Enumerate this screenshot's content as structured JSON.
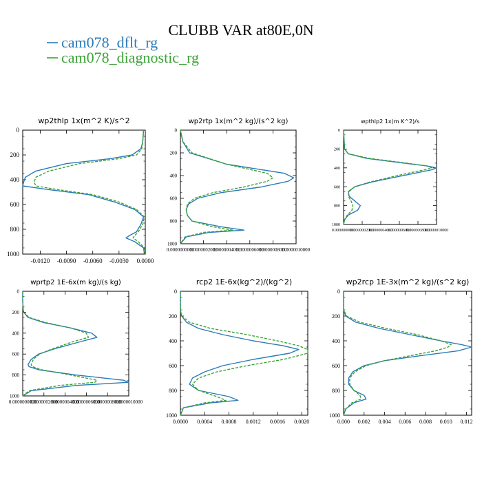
{
  "figure": {
    "title": "CLUBB VAR at80E,0N",
    "legend": [
      {
        "label": "cam078_dflt_rg",
        "color": "#2a7ab8",
        "dash": "solid"
      },
      {
        "label": "cam078_diagnostic_rg",
        "color": "#3aa335",
        "dash": "dashed"
      }
    ]
  },
  "chart_data": [
    {
      "type": "line",
      "title": "wp2thlp  1x(m^2 K)/s^2",
      "xlim": [
        -0.014,
        0.0
      ],
      "xticks": [
        "-0.0120",
        "-0.0090",
        "-0.0060",
        "-0.0030",
        "0.0000"
      ],
      "xtick_values": [
        -0.012,
        -0.009,
        -0.006,
        -0.003,
        0.0
      ],
      "ylim": [
        1000,
        0
      ],
      "yticks": [
        0,
        200,
        400,
        600,
        800,
        1000
      ],
      "y": [
        0,
        100,
        150,
        200,
        230,
        270,
        330,
        380,
        420,
        450,
        480,
        520,
        580,
        640,
        700,
        760,
        820,
        850,
        870,
        900,
        950,
        1000
      ],
      "series": [
        {
          "name": "cam078_dflt_rg",
          "x": [
            -0.0002,
            -0.0003,
            -0.0005,
            -0.0015,
            -0.004,
            -0.009,
            -0.0125,
            -0.0137,
            -0.0139,
            -0.014,
            -0.011,
            -0.0065,
            -0.0035,
            -0.0012,
            -0.0002,
            -0.0005,
            -0.001,
            -0.0018,
            -0.0022,
            -0.0012,
            -0.0002,
            -0.0001
          ]
        },
        {
          "name": "cam078_diagnostic_rg",
          "x": [
            -0.0002,
            -0.0003,
            -0.0004,
            -0.001,
            -0.003,
            -0.0075,
            -0.011,
            -0.0125,
            -0.0127,
            -0.0125,
            -0.01,
            -0.006,
            -0.003,
            -0.001,
            -0.0001,
            -0.0003,
            -0.0008,
            -0.0012,
            -0.0014,
            -0.0008,
            -0.0001,
            -0.0001
          ]
        }
      ]
    },
    {
      "type": "line",
      "title": "wp2rtp  1x(m^2 kg)/(s^2 kg)",
      "xlim": [
        0.0,
        1e-06
      ],
      "xticks": [
        "0.0000000000",
        "0.0000002000",
        "0.0000004000",
        "0.0000006000",
        "0.0000008000",
        "0.0000010000"
      ],
      "xtick_values": [
        0.0,
        2e-07,
        4e-07,
        6e-07,
        8e-07,
        1e-06
      ],
      "ylim": [
        1000,
        0
      ],
      "yticks": [
        0,
        200,
        400,
        600,
        800,
        1000
      ],
      "y": [
        0,
        100,
        200,
        300,
        380,
        420,
        450,
        500,
        550,
        600,
        650,
        700,
        750,
        800,
        850,
        880,
        900,
        940,
        1000
      ],
      "series": [
        {
          "name": "cam078_dflt_rg",
          "x": [
            0.0,
            2e-08,
            8e-08,
            4e-07,
            9e-07,
            9.8e-07,
            9.3e-07,
            7e-07,
            3.5e-07,
            1.5e-07,
            7e-08,
            5e-08,
            6e-08,
            1e-07,
            3.5e-07,
            5.5e-07,
            2.5e-07,
            5e-08,
            0.0
          ]
        },
        {
          "name": "cam078_diagnostic_rg",
          "x": [
            0.0,
            2e-08,
            1e-07,
            4e-07,
            7.5e-07,
            8e-07,
            7.5e-07,
            5.5e-07,
            2.8e-07,
            1.2e-07,
            6e-08,
            5e-08,
            6e-08,
            1e-07,
            2.8e-07,
            4.5e-07,
            2e-07,
            4e-08,
            0.0
          ]
        }
      ]
    },
    {
      "type": "line",
      "title": "wpthlp2  1x(m K^2)/s",
      "xlim": [
        0.0,
        1e-06
      ],
      "xticks": [
        "0.0000000000",
        "0.0000002000",
        "0.0000004000",
        "0.0000006000",
        "0.0000008000",
        "0.0000010000"
      ],
      "xtick_values": [
        0.0,
        2e-07,
        4e-07,
        6e-07,
        8e-07,
        1e-06
      ],
      "ylim": [
        1000,
        0
      ],
      "yticks": [
        0,
        200,
        400,
        600,
        800,
        1000
      ],
      "y": [
        0,
        100,
        200,
        250,
        300,
        350,
        380,
        400,
        420,
        450,
        500,
        550,
        600,
        650,
        700,
        750,
        800,
        850,
        900,
        950,
        1000
      ],
      "series": [
        {
          "name": "cam078_dflt_rg",
          "x": [
            0.0,
            5e-09,
            1e-08,
            5e-08,
            2.5e-07,
            6.5e-07,
            9e-07,
            1e-06,
            9.5e-07,
            8e-07,
            5.5e-07,
            3e-07,
            1.2e-07,
            5e-08,
            6e-08,
            1.2e-07,
            1.8e-07,
            1.5e-07,
            5e-08,
            1e-08,
            0.0
          ]
        },
        {
          "name": "cam078_diagnostic_rg",
          "x": [
            0.0,
            5e-09,
            1e-08,
            5e-08,
            2.8e-07,
            6.8e-07,
            9e-07,
            9.5e-07,
            8.8e-07,
            7.2e-07,
            5e-07,
            2.8e-07,
            1.2e-07,
            6e-08,
            5e-08,
            8e-08,
            1e-07,
            9e-08,
            4e-08,
            1e-08,
            0.0
          ]
        }
      ]
    },
    {
      "type": "line",
      "title": "wprtp2  1E-6x(m kg)/(s kg)",
      "xlim": [
        0.0,
        1e-06
      ],
      "xticks": [
        "0.0000000000",
        "0.0000002000",
        "0.0000004000",
        "0.0000006000",
        "0.0000008000",
        "0.0000010000"
      ],
      "xtick_values": [
        0.0,
        2e-07,
        4e-07,
        6e-07,
        8e-07,
        1e-06
      ],
      "ylim": [
        1000,
        0
      ],
      "yticks": [
        0,
        200,
        400,
        600,
        800,
        1000
      ],
      "y": [
        0,
        100,
        180,
        200,
        250,
        300,
        350,
        400,
        440,
        480,
        550,
        600,
        650,
        700,
        720,
        750,
        800,
        850,
        870,
        900,
        950,
        1000
      ],
      "series": [
        {
          "name": "cam078_dflt_rg",
          "x": [
            0.0,
            0.0,
            5e-09,
            1e-08,
            5e-08,
            2e-07,
            4.5e-07,
            6.5e-07,
            7e-07,
            5.5e-07,
            3e-07,
            1.5e-07,
            8e-08,
            5e-08,
            6e-08,
            1.5e-07,
            5e-07,
            9.5e-07,
            1e-06,
            5e-07,
            8e-08,
            0.0
          ]
        },
        {
          "name": "cam078_diagnostic_rg",
          "x": [
            0.0,
            0.0,
            5e-09,
            1e-08,
            6e-08,
            2.2e-07,
            4.5e-07,
            6e-07,
            6.2e-07,
            4.8e-07,
            2.8e-07,
            1.6e-07,
            1e-07,
            8e-08,
            9e-08,
            1.8e-07,
            4.5e-07,
            7e-07,
            6.8e-07,
            3.5e-07,
            6e-08,
            0.0
          ]
        }
      ]
    },
    {
      "type": "line",
      "title": "rcp2  1E-6x(kg^2)/(kg^2)",
      "xlim": [
        0.0,
        0.0021
      ],
      "xticks": [
        "0.0000",
        "0.0004",
        "0.0008",
        "0.0012",
        "0.0016",
        "0.0020"
      ],
      "xtick_values": [
        0.0,
        0.0004,
        0.0008,
        0.0012,
        0.0016,
        0.002
      ],
      "ylim": [
        1000,
        0
      ],
      "yticks": [
        0,
        200,
        400,
        600,
        800,
        1000
      ],
      "y": [
        0,
        150,
        200,
        250,
        300,
        350,
        400,
        440,
        470,
        500,
        550,
        600,
        650,
        700,
        750,
        800,
        850,
        880,
        900,
        940,
        1000
      ],
      "series": [
        {
          "name": "cam078_dflt_rg",
          "x": [
            0.0,
            0.0,
            2e-05,
            0.0001,
            0.0003,
            0.0007,
            0.0012,
            0.0017,
            0.00195,
            0.0018,
            0.0012,
            0.0007,
            0.0004,
            0.0002,
            0.00015,
            0.0003,
            0.0008,
            0.00095,
            0.0005,
            5e-05,
            0.0
          ]
        },
        {
          "name": "cam078_diagnostic_rg",
          "x": [
            0.0,
            0.0,
            2e-05,
            0.00015,
            0.0005,
            0.0011,
            0.0016,
            0.00195,
            0.0021,
            0.0021,
            0.0017,
            0.0011,
            0.0006,
            0.0003,
            0.0002,
            0.0003,
            0.0006,
            0.00075,
            0.0004,
            5e-05,
            0.0
          ]
        }
      ]
    },
    {
      "type": "line",
      "title": "wp2rcp  1E-3x(m^2 kg)/(s^2 kg)",
      "xlim": [
        0.0,
        0.0125
      ],
      "xticks": [
        "0.000",
        "0.002",
        "0.004",
        "0.006",
        "0.008",
        "0.010",
        "0.012"
      ],
      "xtick_values": [
        0.0,
        0.002,
        0.004,
        0.006,
        0.008,
        0.01,
        0.012
      ],
      "ylim": [
        1000,
        0
      ],
      "yticks": [
        0,
        200,
        400,
        600,
        800,
        1000
      ],
      "y": [
        0,
        150,
        200,
        250,
        300,
        350,
        400,
        430,
        450,
        480,
        520,
        560,
        600,
        650,
        700,
        750,
        800,
        840,
        870,
        900,
        950,
        1000
      ],
      "series": [
        {
          "name": "cam078_dflt_rg",
          "x": [
            0.0,
            0.0,
            0.0002,
            0.0012,
            0.0035,
            0.0065,
            0.0095,
            0.0115,
            0.0125,
            0.0112,
            0.0075,
            0.004,
            0.002,
            0.0009,
            0.0005,
            0.0005,
            0.001,
            0.002,
            0.0022,
            0.001,
            0.0002,
            0.0
          ]
        },
        {
          "name": "cam078_diagnostic_rg",
          "x": [
            0.0,
            0.0,
            0.0003,
            0.0016,
            0.0042,
            0.0072,
            0.0095,
            0.0105,
            0.0102,
            0.009,
            0.0065,
            0.004,
            0.0022,
            0.0011,
            0.0006,
            0.0006,
            0.001,
            0.0016,
            0.0017,
            0.0008,
            0.0002,
            0.0
          ]
        }
      ]
    }
  ]
}
